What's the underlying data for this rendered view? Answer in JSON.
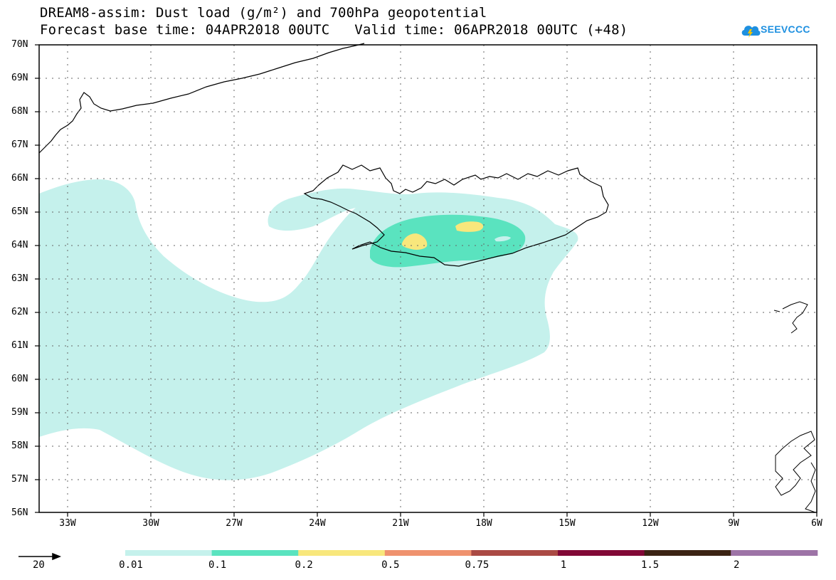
{
  "title": {
    "line1": "DREAM8-assim: Dust load (g/m²) and 700hPa geopotential",
    "line2": "Forecast base time: 04APR2018 00UTC   Valid time: 06APR2018 00UTC (+48)"
  },
  "logo": {
    "text": "SEEVCCC",
    "icon": "cloud-icon",
    "color": "#1e90e0"
  },
  "map": {
    "lat_labels": [
      "70N",
      "69N",
      "68N",
      "67N",
      "66N",
      "65N",
      "64N",
      "63N",
      "62N",
      "61N",
      "60N",
      "59N",
      "58N",
      "57N",
      "56N"
    ],
    "lon_labels": [
      "33W",
      "30W",
      "27W",
      "24W",
      "21W",
      "18W",
      "15W",
      "12W",
      "9W",
      "6W"
    ],
    "lat_range": [
      56,
      70
    ],
    "lon_range": [
      -34,
      -6
    ],
    "grid_style": "dotted"
  },
  "legend": {
    "arrow_label": "20",
    "labels": [
      "0.01",
      "0.1",
      "0.2",
      "0.5",
      "0.75",
      "1",
      "1.5",
      "2"
    ],
    "colors": [
      "#c5f1ec",
      "#5ae3bf",
      "#f8e77c",
      "#ef926e",
      "#aa4a44",
      "#810836",
      "#3b2313",
      "#9d73a6"
    ]
  }
}
